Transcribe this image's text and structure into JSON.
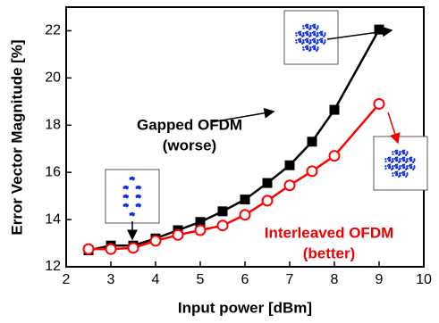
{
  "chart_data": {
    "type": "line",
    "x_label": "Input power [dBm]",
    "y_label": "Error Vector Magnitude [%]",
    "xlim": [
      2,
      10
    ],
    "xticks": [
      2,
      3,
      4,
      5,
      6,
      7,
      8,
      9,
      10
    ],
    "ylim": [
      12,
      23
    ],
    "yticks": [
      12,
      14,
      16,
      18,
      20,
      22
    ],
    "series": [
      {
        "name": "Gapped OFDM",
        "color": "#000000",
        "marker": "square",
        "x": [
          2.5,
          3,
          3.5,
          4,
          4.5,
          5,
          5.5,
          6,
          6.5,
          7,
          7.5,
          8,
          9
        ],
        "values": [
          12.7,
          12.9,
          12.9,
          13.2,
          13.55,
          13.9,
          14.35,
          14.85,
          15.55,
          16.3,
          17.3,
          18.65,
          22.05
        ]
      },
      {
        "name": "Interleaved OFDM",
        "color": "#ff0000",
        "marker": "circle",
        "x": [
          2.5,
          3,
          3.5,
          4,
          4.5,
          5,
          5.5,
          6,
          6.5,
          7,
          7.5,
          8,
          9
        ],
        "values": [
          12.75,
          12.75,
          12.8,
          13.1,
          13.35,
          13.55,
          13.75,
          14.2,
          14.8,
          15.45,
          16.05,
          16.7,
          18.9
        ]
      }
    ],
    "annotations": [
      "Gapped OFDM",
      "(worse)",
      "Interleaved OFDM",
      "(better)"
    ]
  }
}
